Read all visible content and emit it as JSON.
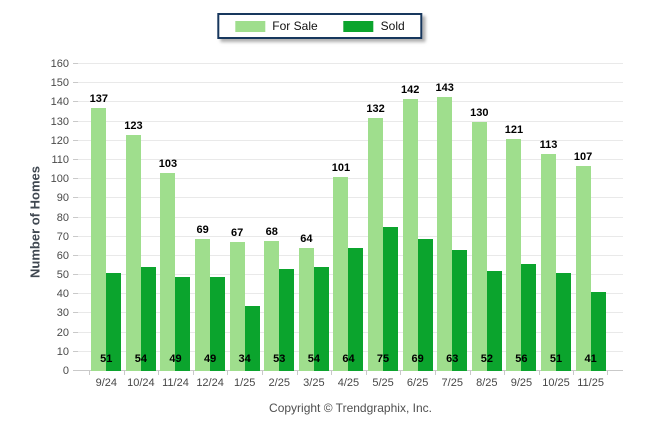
{
  "chart_data": {
    "type": "bar",
    "title": "",
    "categories": [
      "9/24",
      "10/24",
      "11/24",
      "12/24",
      "1/25",
      "2/25",
      "3/25",
      "4/25",
      "5/25",
      "6/25",
      "7/25",
      "8/25",
      "9/25",
      "10/25",
      "11/25"
    ],
    "series": [
      {
        "name": "For Sale",
        "color": "#9FDE8D",
        "values": [
          137,
          123,
          103,
          69,
          67,
          68,
          64,
          101,
          132,
          142,
          143,
          130,
          121,
          113,
          107
        ]
      },
      {
        "name": "Sold",
        "color": "#0BA42D",
        "values": [
          51,
          54,
          49,
          49,
          34,
          53,
          54,
          64,
          75,
          69,
          63,
          52,
          56,
          51,
          41
        ]
      }
    ],
    "xlabel": "",
    "ylabel": "Number of Homes",
    "ylim": [
      0,
      160
    ],
    "ytick_step": 10,
    "grid": "horizontal",
    "legend_position": "top-center",
    "value_label_style": {
      "for_sale": "bold above bar",
      "sold": "bold inside bar bottom"
    }
  },
  "colors": {
    "for_sale": "#9FDE8D",
    "sold": "#0BA42D",
    "gridline": "#E9E9E9",
    "axis_line": "#C9C9C9",
    "axis_text": "#4A4A4A",
    "value_text": "#000000",
    "legend_border": "#17375D"
  },
  "footer": {
    "copyright": "Copyright © Trendgraphix, Inc."
  }
}
